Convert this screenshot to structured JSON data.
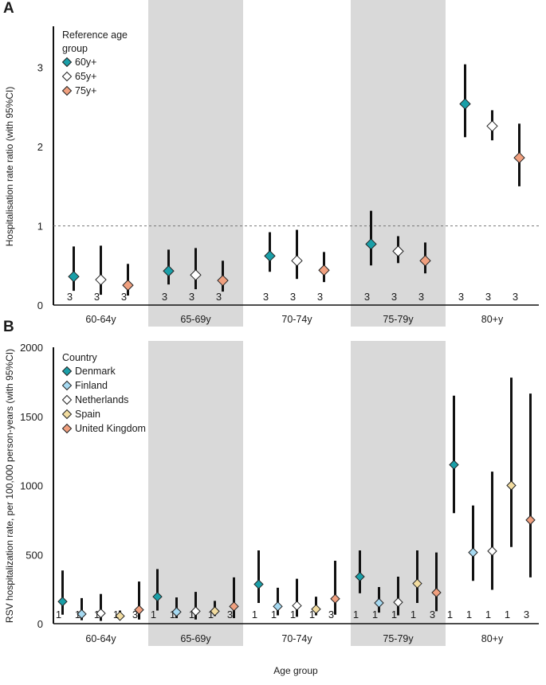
{
  "chart_data": [
    {
      "panel_label": "A",
      "type": "scatter",
      "subtype": "point-range",
      "categories": [
        "60-64y",
        "65-69y",
        "70-74y",
        "75-79y",
        "80+y"
      ],
      "shaded_categories": [
        "65-69y",
        "75-79y"
      ],
      "ylabel": "Hospitalisation rate ratio (with 95%CI)",
      "ylim": [
        0,
        3.5
      ],
      "yticks": [
        "0",
        "1",
        "2",
        "3"
      ],
      "reference_line": 1,
      "legend": {
        "title": "Reference age group",
        "title_lines": [
          "Reference age",
          "group"
        ],
        "location": "top-left"
      },
      "series": [
        {
          "name": "60y+",
          "color": "#1a9fa8",
          "values": [
            0.36,
            0.43,
            0.62,
            0.77,
            2.54
          ],
          "lower": [
            0.18,
            0.26,
            0.42,
            0.5,
            2.12
          ],
          "upper": [
            0.74,
            0.7,
            0.92,
            1.19,
            3.04
          ],
          "n": [
            "3",
            "3",
            "3",
            "3",
            "3"
          ]
        },
        {
          "name": "65y+",
          "color": "#ffffff",
          "values": [
            0.32,
            0.38,
            0.56,
            0.68,
            2.26
          ],
          "lower": [
            0.13,
            0.2,
            0.33,
            0.53,
            2.08
          ],
          "upper": [
            0.75,
            0.72,
            0.95,
            0.87,
            2.46
          ],
          "n": [
            "3",
            "3",
            "3",
            "3",
            "3"
          ]
        },
        {
          "name": "75y+",
          "color": "#f0a07f",
          "values": [
            0.25,
            0.31,
            0.44,
            0.56,
            1.86
          ],
          "lower": [
            0.12,
            0.17,
            0.29,
            0.4,
            1.5
          ],
          "upper": [
            0.52,
            0.56,
            0.67,
            0.79,
            2.29
          ],
          "n": [
            "3",
            "3",
            "3",
            "3",
            "3"
          ]
        }
      ]
    },
    {
      "panel_label": "B",
      "type": "scatter",
      "subtype": "point-range",
      "categories": [
        "60-64y",
        "65-69y",
        "70-74y",
        "75-79y",
        "80+y"
      ],
      "shaded_categories": [
        "65-69y",
        "75-79y"
      ],
      "xlabel": "Age group",
      "ylabel": "RSV hospitalization rate, per 100,000 person-years (with 95%CI)",
      "ylim": [
        0,
        2000
      ],
      "yticks": [
        "0",
        "500",
        "1000",
        "1500",
        "2000"
      ],
      "legend": {
        "title": "Country",
        "location": "top-left"
      },
      "series": [
        {
          "name": "Denmark",
          "color": "#1a9fa8",
          "values": [
            160,
            195,
            285,
            340,
            1150
          ],
          "lower": [
            65,
            95,
            150,
            220,
            800
          ],
          "upper": [
            385,
            395,
            530,
            530,
            1650
          ],
          "n": [
            "1",
            "1",
            "1",
            "1",
            "1"
          ]
        },
        {
          "name": "Finland",
          "color": "#a6d9f1",
          "values": [
            70,
            85,
            125,
            150,
            515
          ],
          "lower": [
            25,
            40,
            60,
            80,
            310
          ],
          "upper": [
            185,
            190,
            260,
            265,
            855
          ],
          "n": [
            "1",
            "1",
            "1",
            "1",
            "1"
          ]
        },
        {
          "name": "Netherlands",
          "color": "#ffffff",
          "values": [
            75,
            90,
            130,
            155,
            525
          ],
          "lower": [
            20,
            30,
            50,
            60,
            245
          ],
          "upper": [
            215,
            230,
            325,
            340,
            1100
          ],
          "n": [
            "1",
            "1",
            "1",
            "1",
            "1"
          ]
        },
        {
          "name": "Spain",
          "color": "#f2dca0",
          "values": [
            55,
            90,
            105,
            290,
            1000
          ],
          "lower": [
            30,
            55,
            60,
            150,
            555
          ],
          "upper": [
            95,
            165,
            195,
            530,
            1780
          ],
          "n": [
            "1",
            "1",
            "1",
            "1",
            "1"
          ]
        },
        {
          "name": "United Kingdom",
          "color": "#f0a07f",
          "values": [
            100,
            125,
            180,
            225,
            750
          ],
          "lower": [
            30,
            40,
            65,
            90,
            335
          ],
          "upper": [
            305,
            335,
            455,
            515,
            1665
          ],
          "n": [
            "3",
            "3",
            "3",
            "3",
            "3"
          ]
        }
      ]
    }
  ]
}
